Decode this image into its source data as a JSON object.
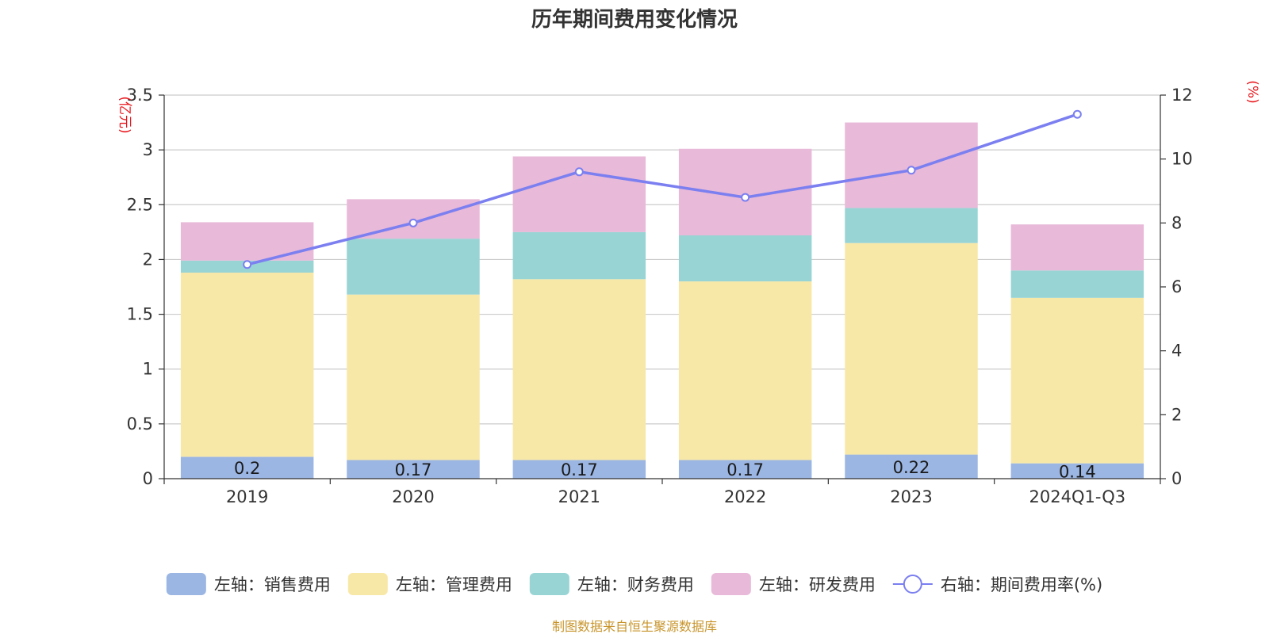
{
  "chart_data": {
    "type": "bar",
    "stacked": true,
    "title": "历年期间费用变化情况",
    "categories": [
      "2019",
      "2020",
      "2021",
      "2022",
      "2023",
      "2024Q1-Q3"
    ],
    "series": [
      {
        "name": "左轴：销售费用",
        "axis": "left",
        "color": "#9bb6e3",
        "values": [
          0.2,
          0.17,
          0.17,
          0.17,
          0.22,
          0.14
        ],
        "labels": [
          "0.2",
          "0.17",
          "0.17",
          "0.17",
          "0.22",
          "0.14"
        ]
      },
      {
        "name": "左轴：管理费用",
        "axis": "left",
        "color": "#f8e8a8",
        "values": [
          1.68,
          1.51,
          1.65,
          1.63,
          1.93,
          1.51
        ]
      },
      {
        "name": "左轴：财务费用",
        "axis": "left",
        "color": "#99d4d5",
        "values": [
          0.11,
          0.51,
          0.43,
          0.42,
          0.32,
          0.25
        ]
      },
      {
        "name": "左轴：研发费用",
        "axis": "left",
        "color": "#e8b9d8",
        "values": [
          0.35,
          0.36,
          0.69,
          0.79,
          0.78,
          0.42
        ]
      },
      {
        "name": "右轴：期间费用率(%)",
        "axis": "right",
        "type": "line",
        "color": "#7b7ff0",
        "values": [
          6.7,
          8.0,
          9.6,
          8.8,
          9.65,
          11.4
        ]
      }
    ],
    "left_axis": {
      "unit": "(亿元)",
      "ylim": [
        0,
        3.5
      ],
      "ticks": [
        0,
        0.5,
        1,
        1.5,
        2,
        2.5,
        3,
        3.5
      ],
      "tick_labels": [
        "0",
        "0.5",
        "1",
        "1.5",
        "2",
        "2.5",
        "3",
        "3.5"
      ]
    },
    "right_axis": {
      "unit": "(%)",
      "ylim": [
        0,
        12
      ],
      "ticks": [
        0,
        2,
        4,
        6,
        8,
        10,
        12
      ],
      "tick_labels": [
        "0",
        "2",
        "4",
        "6",
        "8",
        "10",
        "12"
      ]
    },
    "grid": true,
    "legend_position": "bottom",
    "source": "制图数据来自恒生聚源数据库"
  }
}
